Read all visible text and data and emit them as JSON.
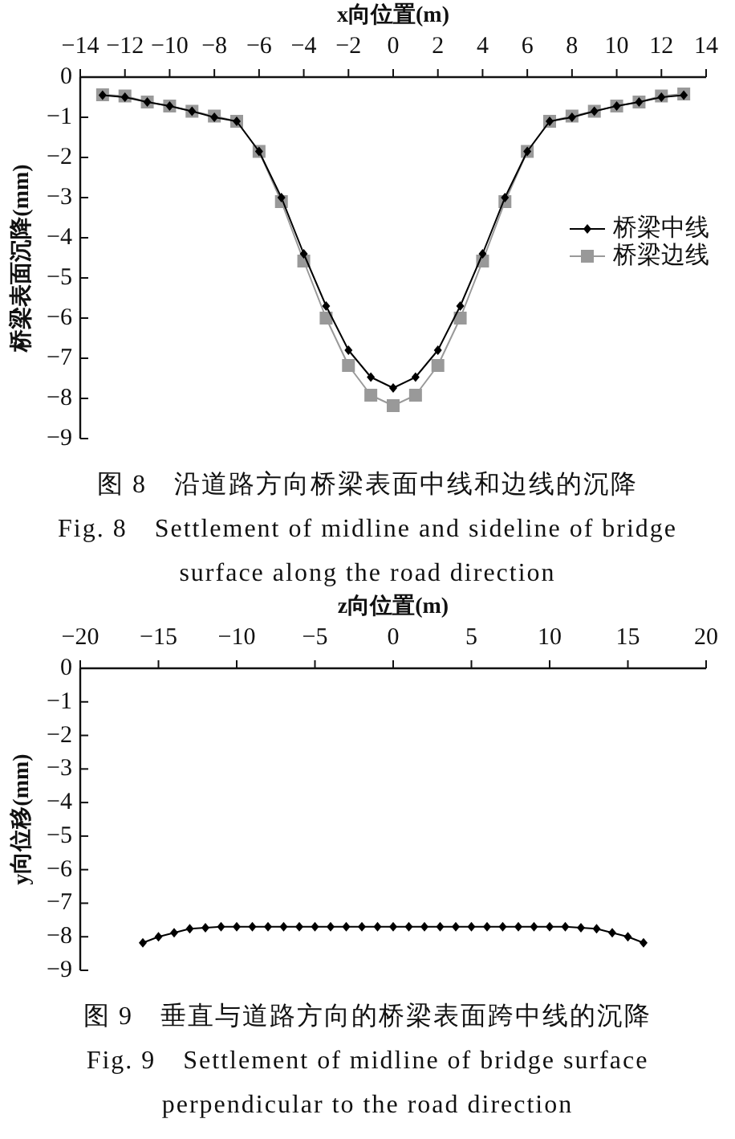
{
  "chart_data": [
    {
      "type": "line",
      "xlabel": "x向位置(m)",
      "ylabel": "桥梁表面沉降(mm)",
      "x": [
        -13,
        -12,
        -11,
        -10,
        -9,
        -8,
        -7,
        -6,
        -5,
        -4,
        -3,
        -2,
        -1,
        0,
        1,
        2,
        3,
        4,
        5,
        6,
        7,
        8,
        9,
        10,
        11,
        12,
        13
      ],
      "series": [
        {
          "name": "桥梁中线",
          "color": "#000000",
          "marker": "diamond",
          "values": [
            -0.45,
            -0.5,
            -0.62,
            -0.72,
            -0.85,
            -1.0,
            -1.1,
            -1.85,
            -3.0,
            -4.4,
            -5.7,
            -6.8,
            -7.47,
            -7.74,
            -7.47,
            -6.8,
            -5.7,
            -4.4,
            -3.0,
            -1.85,
            -1.1,
            -1.0,
            -0.85,
            -0.72,
            -0.62,
            -0.5,
            -0.45
          ]
        },
        {
          "name": "桥梁边线",
          "color": "#999999",
          "marker": "square",
          "values": [
            -0.44,
            -0.47,
            -0.62,
            -0.72,
            -0.85,
            -0.97,
            -1.1,
            -1.85,
            -3.1,
            -4.58,
            -6.0,
            -7.18,
            -7.92,
            -8.18,
            -7.92,
            -7.18,
            -6.0,
            -4.58,
            -3.1,
            -1.85,
            -1.1,
            -0.97,
            -0.85,
            -0.72,
            -0.62,
            -0.47,
            -0.42
          ]
        }
      ],
      "xlim": [
        -14,
        14
      ],
      "xticks": [
        -14,
        -12,
        -10,
        -8,
        -6,
        -4,
        -2,
        0,
        2,
        4,
        6,
        8,
        10,
        12,
        14
      ],
      "ylim": [
        -9,
        0
      ],
      "yticks": [
        0,
        -1,
        -2,
        -3,
        -4,
        -5,
        -6,
        -7,
        -8,
        -9
      ],
      "legend": "right",
      "annotations": [
        "图 8　沿道路方向桥梁表面中线和边线的沉降",
        "Fig. 8　Settlement of midline and sideline of bridge surface along the road direction"
      ]
    },
    {
      "type": "line",
      "xlabel": "z向位置(m)",
      "ylabel": "y向位移(mm)",
      "x": [
        -16,
        -15,
        -14,
        -13,
        -12,
        -11,
        -10,
        -9,
        -8,
        -7,
        -6,
        -5,
        -4,
        -3,
        -2,
        -1,
        0,
        1,
        2,
        3,
        4,
        5,
        6,
        7,
        8,
        9,
        10,
        11,
        12,
        13,
        14,
        15,
        16
      ],
      "series": [
        {
          "color": "#000000",
          "marker": "diamond",
          "values": [
            -8.18,
            -8.0,
            -7.88,
            -7.76,
            -7.73,
            -7.7,
            -7.7,
            -7.7,
            -7.7,
            -7.7,
            -7.7,
            -7.7,
            -7.7,
            -7.7,
            -7.7,
            -7.7,
            -7.7,
            -7.7,
            -7.7,
            -7.7,
            -7.7,
            -7.7,
            -7.7,
            -7.7,
            -7.7,
            -7.7,
            -7.7,
            -7.7,
            -7.73,
            -7.76,
            -7.88,
            -8.0,
            -8.18
          ]
        }
      ],
      "xlim": [
        -20,
        20
      ],
      "xticks": [
        -20,
        -15,
        -10,
        -5,
        0,
        5,
        10,
        15,
        20
      ],
      "ylim": [
        -9,
        0
      ],
      "yticks": [
        0,
        -1,
        -2,
        -3,
        -4,
        -5,
        -6,
        -7,
        -8,
        -9
      ],
      "annotations": [
        "图 9　垂直与道路方向的桥梁表面跨中线的沉降",
        "Fig. 9　Settlement of midline of bridge surface perpendicular to the road direction"
      ]
    }
  ]
}
